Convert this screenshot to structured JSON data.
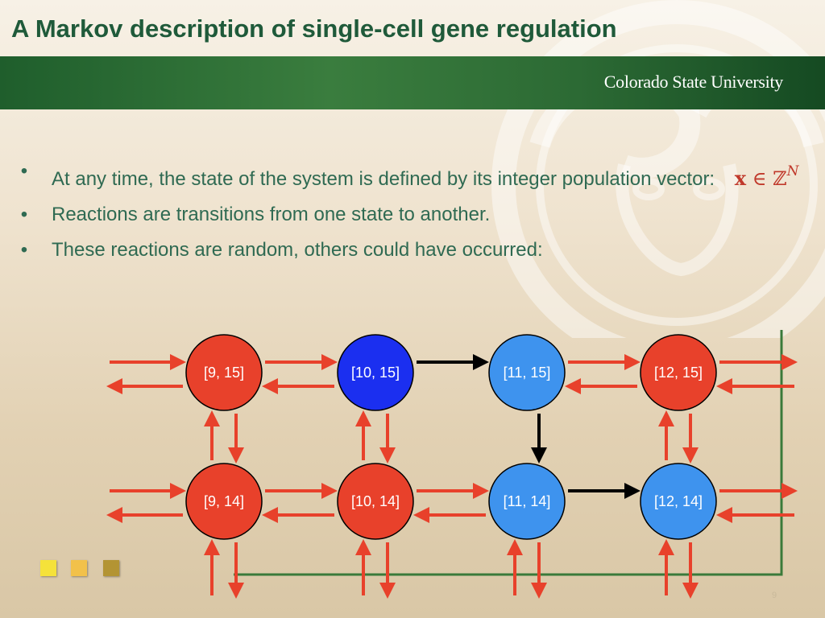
{
  "slide": {
    "title": "A Markov description of single-cell gene regulation",
    "university": "Colorado State University",
    "page_number": "9"
  },
  "bullets": [
    {
      "text": "At any time, the state of the system is defined by its integer population vector:",
      "math": {
        "bold": "x",
        "rel": "∈",
        "set": "ℤ",
        "sup": "N"
      }
    },
    {
      "text": "Reactions are transitions from one state to another."
    },
    {
      "text": "These reactions are random, others could have occurred:"
    }
  ],
  "diagram": {
    "nodes": [
      {
        "id": "9-15",
        "label": "[9, 15]",
        "color": "#e8412b"
      },
      {
        "id": "10-15",
        "label": "[10, 15]",
        "color": "#1b2ff0"
      },
      {
        "id": "11-15",
        "label": "[11, 15]",
        "color": "#3e93ee"
      },
      {
        "id": "12-15",
        "label": "[12, 15]",
        "color": "#e8412b"
      },
      {
        "id": "9-14",
        "label": "[9, 14]",
        "color": "#e8412b"
      },
      {
        "id": "10-14",
        "label": "[10, 14]",
        "color": "#e8412b"
      },
      {
        "id": "11-14",
        "label": "[11, 14]",
        "color": "#3e93ee"
      },
      {
        "id": "12-14",
        "label": "[12, 14]",
        "color": "#3e93ee"
      }
    ],
    "path": [
      {
        "from": "10-15",
        "to": "11-15"
      },
      {
        "from": "11-15",
        "to": "11-14"
      },
      {
        "from": "11-14",
        "to": "12-14"
      }
    ],
    "colors": {
      "arrow": "#e8412b",
      "path_arrow": "#000000",
      "frame": "#3a7a3a"
    }
  },
  "decor": {
    "squares": [
      "#f5e23a",
      "#f2c14a",
      "#b39433"
    ]
  }
}
